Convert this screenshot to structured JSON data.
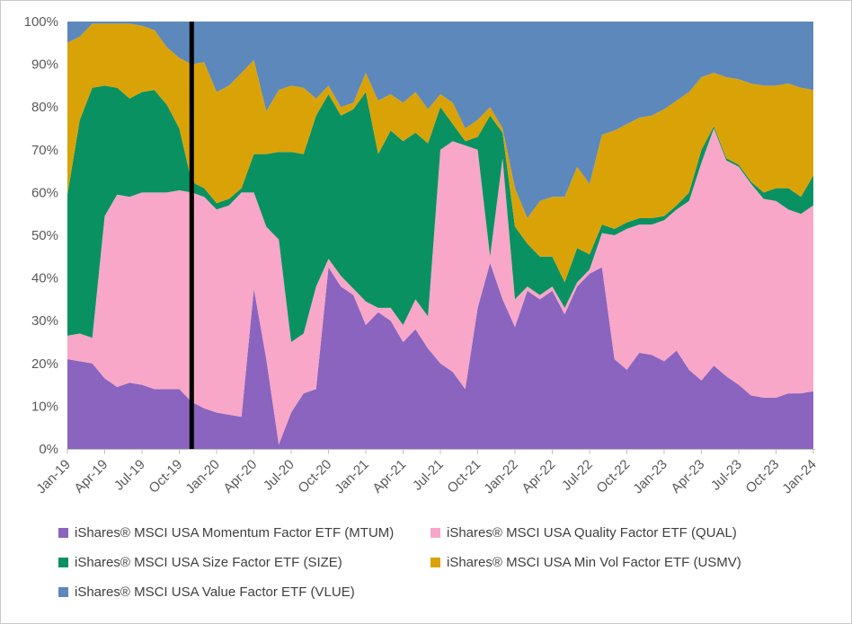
{
  "chart_data": {
    "type": "area",
    "subtype": "stacked-100-percent",
    "title": "",
    "xlabel": "",
    "ylabel": "",
    "ylim": [
      0,
      100
    ],
    "y_tick_labels": [
      "0%",
      "10%",
      "20%",
      "30%",
      "40%",
      "50%",
      "60%",
      "70%",
      "80%",
      "90%",
      "100%"
    ],
    "x_tick_step": 3,
    "grid": "off",
    "legend_position": "bottom",
    "annotation_line": {
      "at_month": "Nov-19",
      "color": "#000000"
    },
    "categories": [
      "Jan-19",
      "Feb-19",
      "Mar-19",
      "Apr-19",
      "May-19",
      "Jun-19",
      "Jul-19",
      "Aug-19",
      "Sep-19",
      "Oct-19",
      "Nov-19",
      "Dec-19",
      "Jan-20",
      "Feb-20",
      "Mar-20",
      "Apr-20",
      "May-20",
      "Jun-20",
      "Jul-20",
      "Aug-20",
      "Sep-20",
      "Oct-20",
      "Nov-20",
      "Dec-20",
      "Jan-21",
      "Feb-21",
      "Mar-21",
      "Apr-21",
      "May-21",
      "Jun-21",
      "Jul-21",
      "Aug-21",
      "Sep-21",
      "Oct-21",
      "Nov-21",
      "Dec-21",
      "Jan-22",
      "Feb-22",
      "Mar-22",
      "Apr-22",
      "May-22",
      "Jun-22",
      "Jul-22",
      "Aug-22",
      "Sep-22",
      "Oct-22",
      "Nov-22",
      "Dec-22",
      "Jan-23",
      "Feb-23",
      "Mar-23",
      "Apr-23",
      "May-23",
      "Jun-23",
      "Jul-23",
      "Aug-23",
      "Sep-23",
      "Oct-23",
      "Nov-23",
      "Dec-23",
      "Jan-24"
    ],
    "series": [
      {
        "key": "MTUM",
        "name": "iShares® MSCI USA Momentum Factor ETF (MTUM)",
        "color": "#8A64BE",
        "values": [
          21,
          20.5,
          20,
          16.5,
          14.5,
          15.5,
          15,
          14,
          14,
          14,
          11,
          9.5,
          8.5,
          8,
          7.5,
          37.5,
          21,
          1,
          8.5,
          13,
          14,
          42.5,
          38,
          36,
          29,
          32,
          30,
          25,
          28,
          23.5,
          20,
          18,
          14,
          33,
          43.5,
          35,
          28.5,
          37,
          35,
          37,
          31.5,
          38,
          41,
          42.5,
          21,
          18.5,
          22.5,
          22,
          20.5,
          23,
          18.5,
          16,
          19.5,
          17,
          15,
          12.5,
          12,
          12,
          13,
          13,
          13.5
        ]
      },
      {
        "key": "QUAL",
        "name": "iShares® MSCI USA Quality Factor ETF (QUAL)",
        "color": "#F8A7C8",
        "values": [
          5.5,
          6.5,
          6,
          38,
          45,
          43.5,
          45,
          46,
          46,
          46.5,
          49,
          49.5,
          47.5,
          49,
          52.5,
          22.5,
          31,
          48,
          16.5,
          14,
          24,
          2,
          2.5,
          1.5,
          5.5,
          1,
          3,
          4,
          7,
          7.5,
          50,
          54,
          57,
          37,
          1.5,
          33,
          6.5,
          1,
          1,
          1,
          1.5,
          1,
          1,
          8,
          29,
          33,
          30,
          30.5,
          33,
          33,
          39.5,
          51,
          55.5,
          50.5,
          51,
          49.5,
          46.5,
          46,
          43,
          42,
          43.5
        ]
      },
      {
        "key": "SIZE",
        "name": "iShares® MSCI USA Size Factor ETF (SIZE)",
        "color": "#0A9161",
        "values": [
          33,
          50,
          58.5,
          30.5,
          25,
          23,
          23.5,
          24,
          20.5,
          14.5,
          2.5,
          2,
          1.5,
          1.5,
          1,
          9,
          17,
          20.5,
          44.5,
          42,
          40,
          38.5,
          37.5,
          42,
          49,
          36,
          41.5,
          43,
          39,
          40.5,
          10,
          4,
          1,
          3,
          33,
          6,
          17,
          10,
          9,
          7,
          6,
          8,
          3.5,
          2,
          1.5,
          1.5,
          1.5,
          1.5,
          1,
          1,
          2,
          3,
          0.5,
          0.5,
          0.5,
          0.5,
          1.5,
          3,
          5,
          4,
          7
        ]
      },
      {
        "key": "USMV",
        "name": "iShares® MSCI USA Min Vol Factor ETF (USMV)",
        "color": "#D9A307",
        "values": [
          35.5,
          19.5,
          15,
          14.5,
          15,
          17.5,
          15.5,
          14,
          13.5,
          16.5,
          27.5,
          29.5,
          26,
          26.5,
          27,
          22,
          10,
          14.5,
          15.5,
          15.5,
          4,
          2,
          2,
          1.5,
          4.5,
          12.5,
          8.5,
          9,
          9.5,
          8,
          3,
          5,
          3,
          4,
          2,
          1,
          9,
          6,
          13,
          14,
          20,
          19,
          16.5,
          21,
          23,
          23,
          23.5,
          24,
          25,
          24.5,
          23.5,
          17,
          12.5,
          19,
          20,
          23,
          25,
          24,
          24.5,
          25.5,
          20
        ]
      },
      {
        "key": "VLUE",
        "name": "iShares® MSCI USA Value Factor ETF (VLUE)",
        "color": "#5C88BB",
        "values": [
          5,
          3.5,
          0.5,
          0.5,
          0.5,
          0.5,
          1,
          2,
          6,
          8.5,
          10,
          9.5,
          16.5,
          15,
          12,
          9,
          21,
          16,
          15,
          15.5,
          18,
          15,
          20,
          19,
          12,
          18.5,
          17,
          19,
          16.5,
          20.5,
          17,
          19,
          25,
          23,
          20,
          25,
          39,
          46,
          42,
          41,
          41,
          34,
          38,
          26.5,
          25.5,
          24,
          22.5,
          22,
          20.5,
          18.5,
          16.5,
          13,
          12,
          13,
          13.5,
          14.5,
          15,
          15,
          14.5,
          15.5,
          16
        ]
      }
    ],
    "style": {
      "axis_text_color": "#595959",
      "legend_text_color": "#3f3f3f",
      "axis_line_color": "#bfbfbf",
      "frame_border_color": "#c9c9c9",
      "background": "#ffffff"
    }
  }
}
